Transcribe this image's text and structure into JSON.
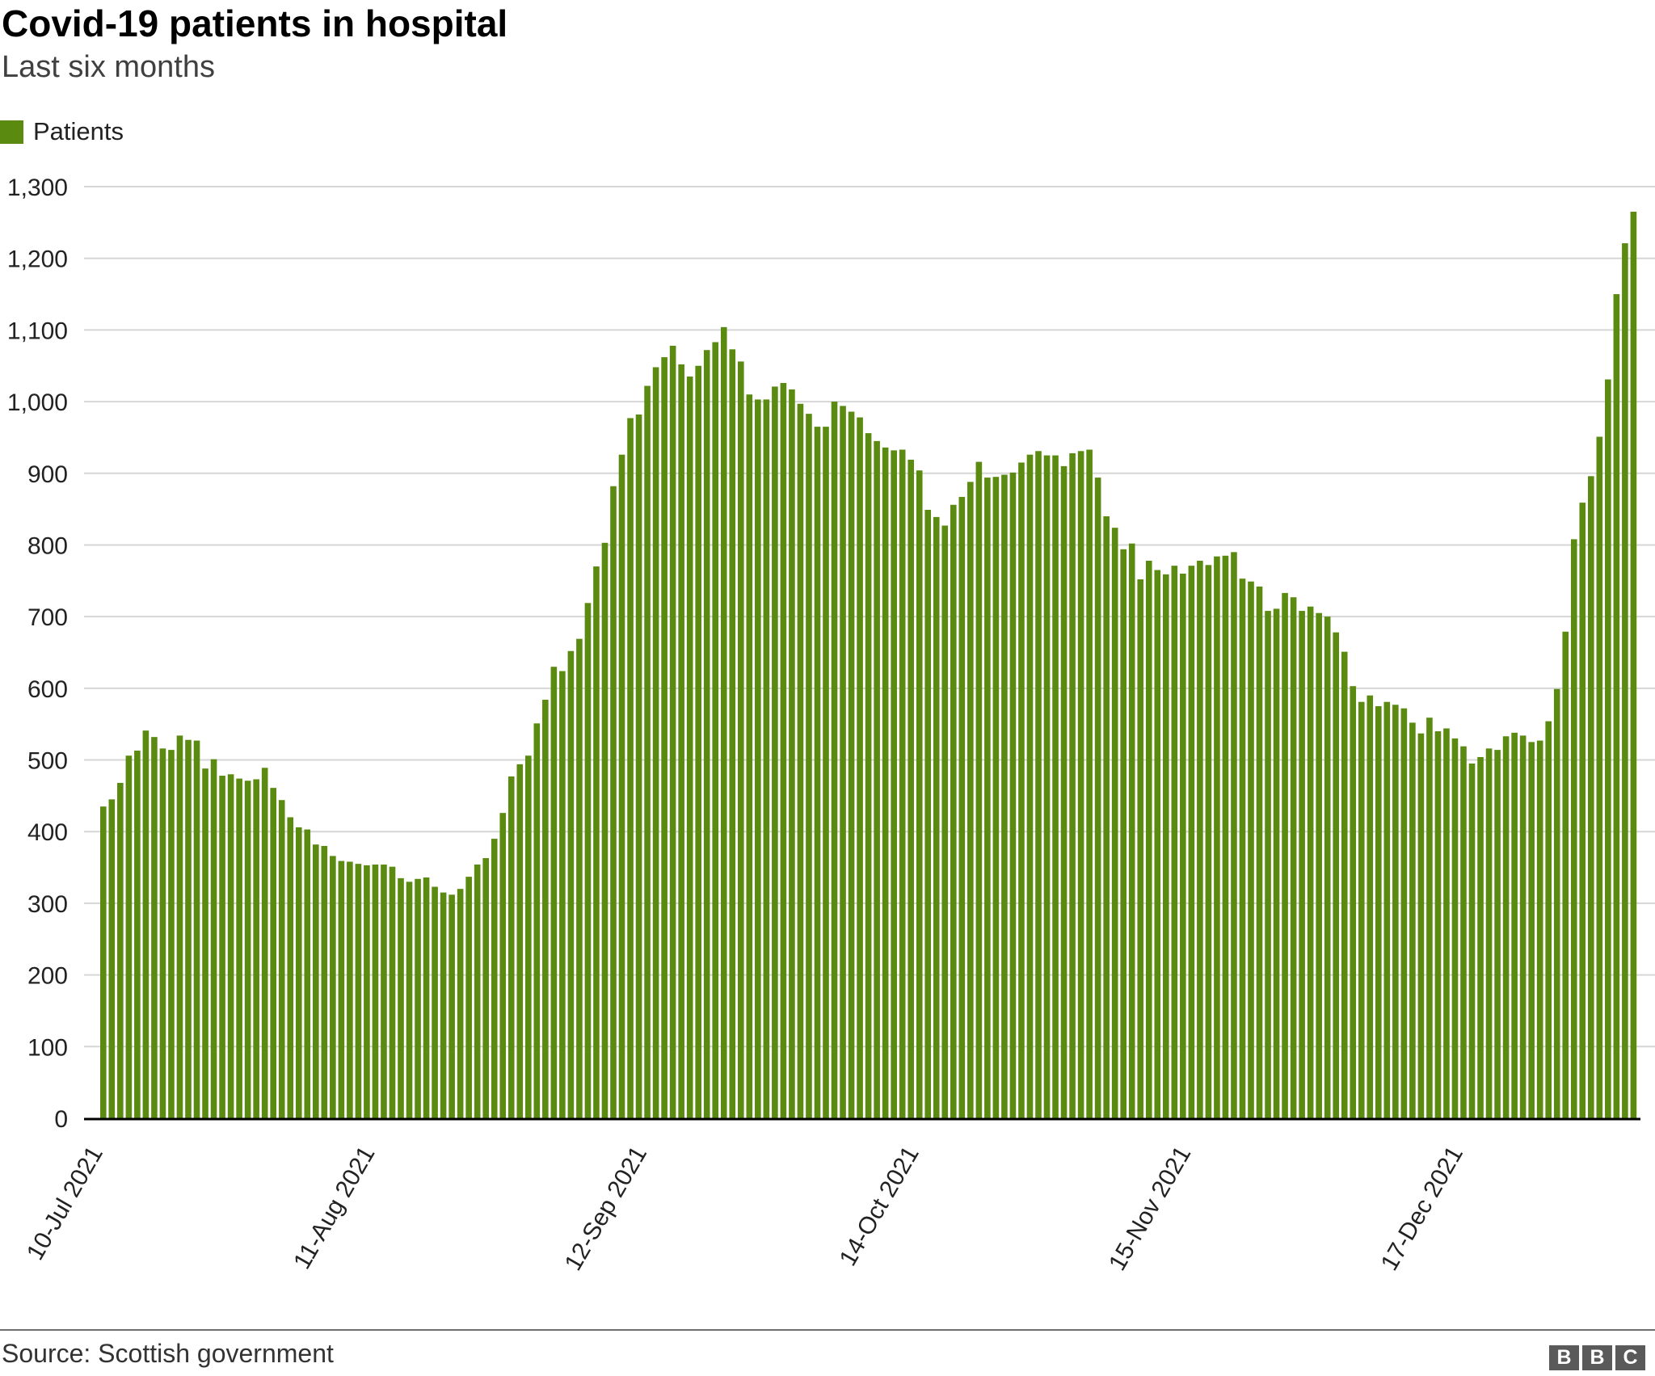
{
  "title": "Covid-19 patients in hospital",
  "subtitle": "Last six months",
  "source": "Source: Scottish government",
  "logo_letters": [
    "B",
    "B",
    "C"
  ],
  "colors": {
    "bar": "#5a8a0f",
    "grid": "#d6d6d6",
    "axis": "#000000"
  },
  "chart_data": {
    "type": "bar",
    "x_tick_labels": [
      "10-Jul 2021",
      "11-Aug 2021",
      "12-Sep 2021",
      "14-Oct 2021",
      "15-Nov 2021",
      "17-Dec 2021"
    ],
    "y_ticks": [
      0,
      100,
      200,
      300,
      400,
      500,
      600,
      700,
      800,
      900,
      1000,
      1100,
      1200,
      1300
    ],
    "y_tick_labels": [
      "0",
      "100",
      "200",
      "300",
      "400",
      "500",
      "600",
      "700",
      "800",
      "900",
      "1,000",
      "1,100",
      "1,200",
      "1,300"
    ],
    "ylim": [
      0,
      1300
    ],
    "grid": true,
    "legend_position": "top-left",
    "series": [
      {
        "name": "Patients",
        "color": "#5a8a0f",
        "values": [
          435,
          445,
          468,
          506,
          513,
          541,
          532,
          516,
          514,
          534,
          528,
          527,
          488,
          501,
          478,
          480,
          474,
          471,
          473,
          489,
          461,
          444,
          420,
          406,
          403,
          382,
          380,
          366,
          359,
          358,
          355,
          353,
          354,
          354,
          351,
          335,
          330,
          334,
          336,
          323,
          315,
          312,
          320,
          337,
          354,
          363,
          390,
          426,
          477,
          494,
          506,
          551,
          584,
          630,
          624,
          652,
          669,
          719,
          770,
          803,
          882,
          926,
          977,
          982,
          1022,
          1048,
          1062,
          1078,
          1052,
          1035,
          1050,
          1072,
          1083,
          1104,
          1073,
          1056,
          1010,
          1003,
          1003,
          1021,
          1026,
          1017,
          997,
          983,
          965,
          965,
          1000,
          994,
          986,
          978,
          956,
          945,
          936,
          932,
          933,
          919,
          904,
          849,
          839,
          827,
          856,
          867,
          888,
          916,
          894,
          895,
          898,
          901,
          915,
          926,
          931,
          925,
          925,
          910,
          928,
          931,
          933,
          894,
          840,
          824,
          794,
          802,
          752,
          778,
          765,
          759,
          771,
          760,
          771,
          778,
          772,
          784,
          785,
          790,
          753,
          749,
          742,
          708,
          711,
          733,
          727,
          708,
          714,
          705,
          700,
          678,
          651,
          603,
          581,
          590,
          575,
          581,
          577,
          572,
          552,
          537,
          559,
          540,
          544,
          530,
          519,
          495,
          504,
          516,
          514,
          533,
          538,
          534,
          525,
          527,
          554,
          599,
          679,
          808,
          859,
          896,
          951,
          1031,
          1150,
          1221,
          1265
        ]
      }
    ]
  }
}
